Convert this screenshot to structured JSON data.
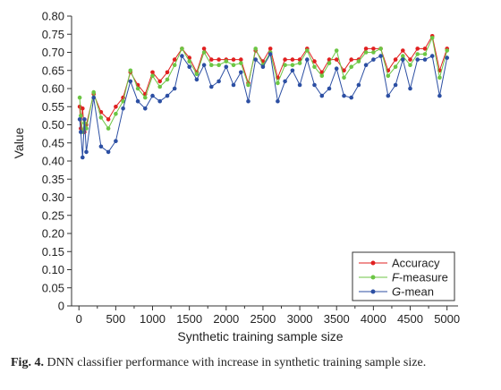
{
  "caption": {
    "label": "Fig. 4.",
    "text": "DNN classifier performance with increase in synthetic training sample size."
  },
  "chart_data": {
    "type": "line",
    "title": "",
    "xlabel": "Synthetic training sample size",
    "ylabel": "Value",
    "xlim": [
      -100,
      5150
    ],
    "ylim": [
      0,
      0.8
    ],
    "xticks": [
      0,
      500,
      1000,
      1500,
      2000,
      2500,
      3000,
      3500,
      4000,
      4500,
      5000
    ],
    "xtick_labels": [
      "0",
      "500",
      "1000",
      "1500",
      "2000",
      "2500",
      "3000",
      "3500",
      "4000",
      "4500",
      "5000"
    ],
    "yticks": [
      0,
      0.05,
      0.1,
      0.15,
      0.2,
      0.25,
      0.3,
      0.35,
      0.4,
      0.45,
      0.5,
      0.55,
      0.6,
      0.65,
      0.7,
      0.75,
      0.8
    ],
    "ytick_labels": [
      "0",
      "0.05",
      "0.10",
      "0.15",
      "0.20",
      "0.25",
      "0.30",
      "0.35",
      "0.40",
      "0.45",
      "0.50",
      "0.55",
      "0.60",
      "0.65",
      "0.70",
      "0.75",
      "0.80"
    ],
    "grid": false,
    "legend_position": "bottom-right",
    "x": [
      10,
      25,
      50,
      75,
      100,
      200,
      300,
      400,
      500,
      600,
      700,
      800,
      900,
      1000,
      1100,
      1200,
      1300,
      1400,
      1500,
      1600,
      1700,
      1800,
      1900,
      2000,
      2100,
      2200,
      2300,
      2400,
      2500,
      2600,
      2700,
      2800,
      2900,
      3000,
      3100,
      3200,
      3300,
      3400,
      3500,
      3600,
      3700,
      3800,
      3900,
      4000,
      4100,
      4200,
      4300,
      4400,
      4500,
      4600,
      4700,
      4800,
      4900,
      5000
    ],
    "series": [
      {
        "name": "Accuracy",
        "color": "#e02020",
        "values": [
          0.55,
          0.49,
          0.545,
          0.48,
          0.5,
          0.585,
          0.535,
          0.515,
          0.55,
          0.575,
          0.645,
          0.61,
          0.585,
          0.645,
          0.62,
          0.645,
          0.68,
          0.71,
          0.685,
          0.645,
          0.71,
          0.68,
          0.68,
          0.68,
          0.68,
          0.68,
          0.615,
          0.705,
          0.675,
          0.71,
          0.63,
          0.68,
          0.68,
          0.68,
          0.71,
          0.675,
          0.645,
          0.68,
          0.68,
          0.65,
          0.68,
          0.68,
          0.71,
          0.71,
          0.71,
          0.65,
          0.68,
          0.705,
          0.68,
          0.71,
          0.71,
          0.745,
          0.65,
          0.71
        ]
      },
      {
        "name": "F-measure",
        "name_parts": [
          "F",
          "-measure"
        ],
        "color": "#6cc644",
        "values": [
          0.575,
          0.525,
          0.48,
          0.505,
          0.49,
          0.59,
          0.52,
          0.49,
          0.53,
          0.565,
          0.65,
          0.6,
          0.575,
          0.635,
          0.605,
          0.625,
          0.665,
          0.71,
          0.675,
          0.64,
          0.7,
          0.665,
          0.665,
          0.675,
          0.665,
          0.67,
          0.61,
          0.71,
          0.665,
          0.7,
          0.615,
          0.665,
          0.665,
          0.67,
          0.705,
          0.66,
          0.635,
          0.67,
          0.705,
          0.63,
          0.66,
          0.675,
          0.7,
          0.7,
          0.71,
          0.635,
          0.66,
          0.69,
          0.665,
          0.695,
          0.695,
          0.74,
          0.63,
          0.705
        ]
      },
      {
        "name": "G-mean",
        "name_parts": [
          "G",
          "-mean"
        ],
        "color": "#2c4fa3",
        "values": [
          0.515,
          0.48,
          0.41,
          0.515,
          0.425,
          0.575,
          0.44,
          0.425,
          0.455,
          0.545,
          0.62,
          0.565,
          0.545,
          0.58,
          0.565,
          0.58,
          0.6,
          0.69,
          0.66,
          0.625,
          0.665,
          0.605,
          0.62,
          0.66,
          0.61,
          0.645,
          0.565,
          0.68,
          0.66,
          0.695,
          0.565,
          0.62,
          0.65,
          0.61,
          0.68,
          0.61,
          0.58,
          0.6,
          0.655,
          0.58,
          0.575,
          0.61,
          0.665,
          0.68,
          0.69,
          0.58,
          0.61,
          0.68,
          0.6,
          0.68,
          0.68,
          0.69,
          0.58,
          0.685
        ]
      }
    ]
  }
}
